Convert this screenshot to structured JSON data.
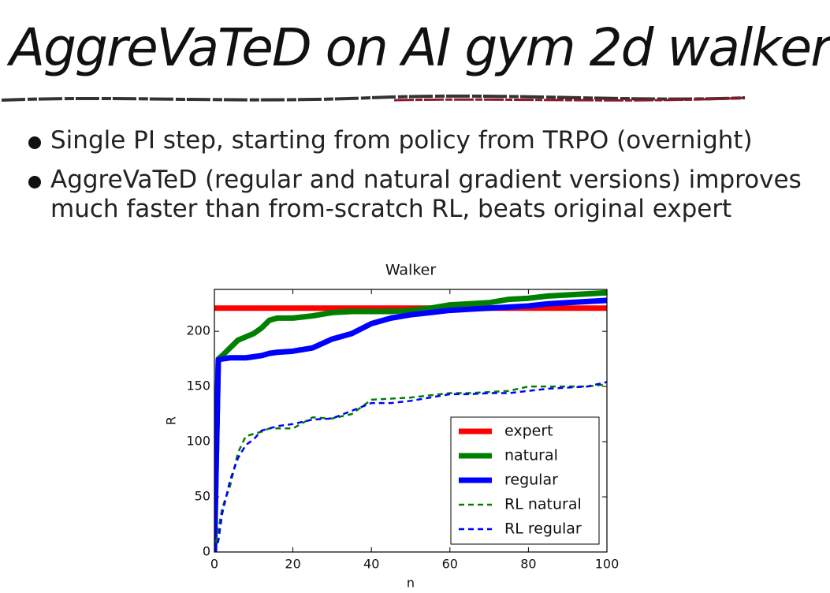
{
  "header": {
    "title": "AggreVaTeD on AI gym 2d walker"
  },
  "bullets": [
    "Single PI step, starting from policy from TRPO (overnight)",
    "AggreVaTeD (regular and natural gradient versions) improves much faster than from-scratch RL, beats original expert"
  ],
  "chart_data": {
    "type": "line",
    "title": "Walker",
    "xlabel": "n",
    "ylabel": "R",
    "x": [
      0,
      1,
      2,
      4,
      6,
      8,
      10,
      12,
      14,
      16,
      20,
      25,
      30,
      35,
      40,
      45,
      50,
      55,
      60,
      65,
      70,
      75,
      80,
      85,
      90,
      95,
      100
    ],
    "series": [
      {
        "name": "expert",
        "color": "#ff0000",
        "linestyle": "solid",
        "values": [
          221,
          221,
          221,
          221,
          221,
          221,
          221,
          221,
          221,
          221,
          221,
          221,
          221,
          221,
          221,
          221,
          221,
          221,
          221,
          221,
          221,
          221,
          221,
          221,
          221,
          221,
          221
        ]
      },
      {
        "name": "natural",
        "color": "#008000",
        "linestyle": "solid",
        "values": [
          0,
          175,
          178,
          185,
          192,
          195,
          198,
          203,
          210,
          212,
          212,
          214,
          217,
          218,
          218,
          218,
          219,
          221,
          224,
          225,
          226,
          229,
          230,
          232,
          233,
          234,
          235
        ]
      },
      {
        "name": "regular",
        "color": "#0000ff",
        "linestyle": "solid",
        "values": [
          0,
          174,
          175,
          176,
          176,
          176,
          177,
          178,
          180,
          181,
          182,
          185,
          193,
          198,
          207,
          212,
          215,
          217,
          219,
          220,
          221,
          222,
          223,
          225,
          226,
          227,
          228
        ]
      },
      {
        "name": "RL natural",
        "color": "#008000",
        "linestyle": "dashed",
        "values": [
          0,
          20,
          40,
          60,
          90,
          105,
          107,
          109,
          112,
          112,
          112,
          122,
          121,
          125,
          138,
          139,
          140,
          142,
          144,
          144,
          145,
          146,
          150,
          150,
          150,
          150,
          152
        ]
      },
      {
        "name": "RL regular",
        "color": "#0000ff",
        "linestyle": "dashed",
        "values": [
          0,
          10,
          35,
          65,
          85,
          97,
          102,
          110,
          112,
          114,
          116,
          120,
          121,
          128,
          135,
          135,
          137,
          140,
          143,
          143,
          144,
          144,
          146,
          148,
          149,
          150,
          154
        ]
      }
    ],
    "xlim": [
      0,
      100
    ],
    "ylim": [
      0,
      238
    ],
    "xticks": [
      0,
      20,
      40,
      60,
      80,
      100
    ],
    "yticks": [
      0,
      50,
      100,
      150,
      200
    ],
    "legend": "lower right",
    "grid": false
  }
}
